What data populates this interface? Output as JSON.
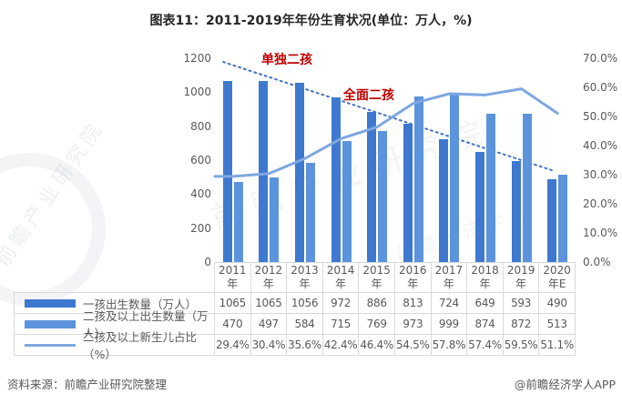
{
  "title": "图表11：2011-2019年年份生育状况(单位：万人，%)",
  "footer": {
    "source_note": "资料来源：前瞻产业研究院整理",
    "credit": "@前瞻经济学人APP"
  },
  "watermarks": [
    "前瞻产业研究院",
    "前瞻经济学人"
  ],
  "colors": {
    "bar_first_child": "#3e79cf",
    "bar_second_child": "#5b94dc",
    "ratio_line": "#7fa7e0",
    "trendline": "#4472c4",
    "annotation": "#c00000",
    "text": "#595959",
    "border": "#d9d9d9"
  },
  "chart_data": {
    "type": "bar",
    "subtype": "grouped-bars-with-line",
    "categories": [
      "2011年",
      "2012年",
      "2013年",
      "2014年",
      "2015年",
      "2016年",
      "2017年",
      "2018年",
      "2019年",
      "2020年E"
    ],
    "series": [
      {
        "name": "一孩出生数量（万人）",
        "type": "bar",
        "axis": "left",
        "color": "#3e79cf",
        "values": [
          1065,
          1065,
          1056,
          972,
          886,
          813,
          724,
          649,
          593,
          490
        ]
      },
      {
        "name": "二孩及以上出生数量（万人）",
        "type": "bar",
        "axis": "left",
        "color": "#5b94dc",
        "values": [
          470,
          497,
          584,
          715,
          769,
          973,
          999,
          874,
          872,
          513
        ]
      },
      {
        "name": "二孩及以上新生儿占比（%）",
        "type": "line",
        "axis": "right",
        "color": "#7fa7e0",
        "values": [
          29.4,
          30.4,
          35.6,
          42.4,
          46.4,
          54.5,
          57.8,
          57.4,
          59.5,
          51.1
        ]
      }
    ],
    "left_axis": {
      "min": 0,
      "max": 1200,
      "step": 200,
      "ticks": [
        "0",
        "200",
        "400",
        "600",
        "800",
        "1000",
        "1200"
      ]
    },
    "right_axis": {
      "min": 0,
      "max": 70,
      "step": 10,
      "ticks": [
        "0.0%",
        "10.0%",
        "20.0%",
        "30.0%",
        "40.0%",
        "50.0%",
        "60.0%",
        "70.0%"
      ]
    },
    "annotations": [
      {
        "text": "单独二孩",
        "color": "#c00000"
      },
      {
        "text": "全面二孩",
        "color": "#c00000"
      }
    ],
    "trendline": {
      "style": "dotted",
      "color": "#4472c4",
      "start": {
        "x_frac": 0.023,
        "value": 1178
      },
      "end": {
        "x_frac": 0.934,
        "value": 541
      }
    },
    "grid": false,
    "legend_position": "table-bottom",
    "title": "图表11：2011-2019年年份生育状况(单位：万人，%)"
  },
  "table": {
    "rows": [
      {
        "label": "一孩出生数量（万人）",
        "swatch": "bar-dark",
        "values": [
          "1065",
          "1065",
          "1056",
          "972",
          "886",
          "813",
          "724",
          "649",
          "593",
          "490"
        ]
      },
      {
        "label": "二孩及以上出生数量（万人）",
        "swatch": "bar-light",
        "values": [
          "470",
          "497",
          "584",
          "715",
          "769",
          "973",
          "999",
          "874",
          "872",
          "513"
        ]
      },
      {
        "label": "二孩及以上新生儿占比（%）",
        "swatch": "line",
        "values": [
          "29.4%",
          "30.4%",
          "35.6%",
          "42.4%",
          "46.4%",
          "54.5%",
          "57.8%",
          "57.4%",
          "59.5%",
          "51.1%"
        ]
      }
    ]
  }
}
